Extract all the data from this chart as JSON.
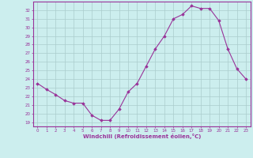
{
  "x": [
    0,
    1,
    2,
    3,
    4,
    5,
    6,
    7,
    8,
    9,
    10,
    11,
    12,
    13,
    14,
    15,
    16,
    17,
    18,
    19,
    20,
    21,
    22,
    23
  ],
  "y": [
    23.5,
    22.8,
    22.2,
    21.5,
    21.2,
    21.2,
    19.8,
    19.2,
    19.2,
    20.5,
    22.5,
    23.5,
    25.5,
    27.5,
    29.0,
    31.0,
    31.5,
    32.5,
    32.2,
    32.2,
    30.8,
    27.5,
    25.2,
    24.0
  ],
  "line_color": "#993399",
  "marker_color": "#993399",
  "bg_color": "#cceeee",
  "grid_color": "#aacccc",
  "spine_color": "#993399",
  "xlabel": "Windchill (Refroidissement éolien,°C)",
  "ylabel_ticks": [
    19,
    20,
    21,
    22,
    23,
    24,
    25,
    26,
    27,
    28,
    29,
    30,
    31,
    32
  ],
  "ylim": [
    18.5,
    33.0
  ],
  "xlim": [
    -0.5,
    23.5
  ],
  "xticks": [
    0,
    1,
    2,
    3,
    4,
    5,
    6,
    7,
    8,
    9,
    10,
    11,
    12,
    13,
    14,
    15,
    16,
    17,
    18,
    19,
    20,
    21,
    22,
    23
  ]
}
